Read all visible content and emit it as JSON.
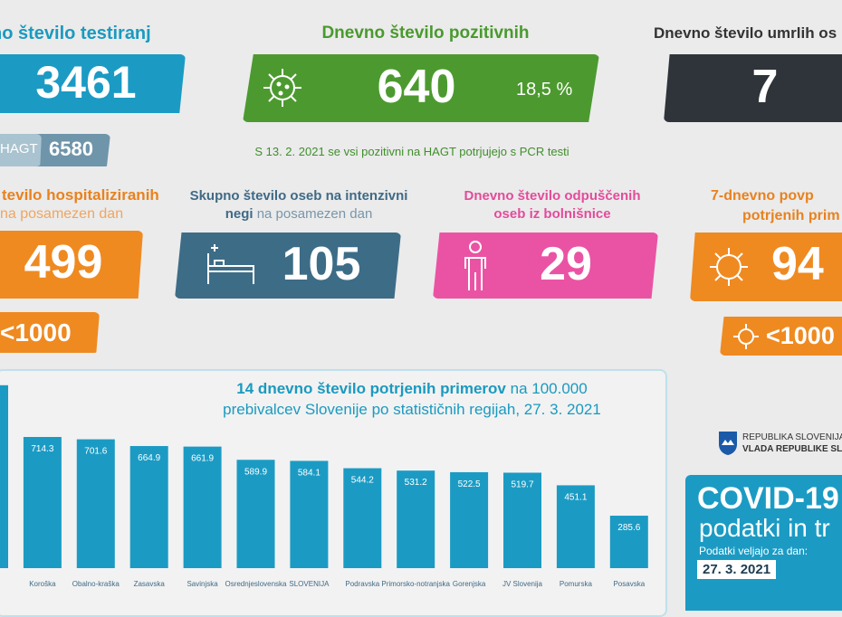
{
  "tests": {
    "title": "no število testiranj",
    "value": "3461",
    "hagt_label": "HAGT",
    "hagt_value": "6580"
  },
  "positives": {
    "title": "Dnevno število pozitivnih",
    "value": "640",
    "percent": "18,5 %"
  },
  "deaths": {
    "title": "Dnevno število umrlih os",
    "value": "7"
  },
  "note": "S 13. 2. 2021 se vsi pozitivni na HAGT potrjujejo s PCR testi",
  "hospitalized": {
    "title_bold": "tevilo hospitaliziranih",
    "title_rest": "na posamezen dan",
    "value": "499",
    "sub": "<1000"
  },
  "icu": {
    "title_bold_1": "Skupno število oseb na intenzivni",
    "title_bold_2": "negi",
    "title_rest": "na posamezen dan",
    "value": "105"
  },
  "discharged": {
    "title_1": "Dnevno število odpuščenih",
    "title_2": "oseb iz bolnišnice",
    "value": "29"
  },
  "avg7": {
    "title_1": "7-dnevno povp",
    "title_2": "potrjenih prim",
    "value": "94",
    "sub": "<1000"
  },
  "chart_data": {
    "type": "bar",
    "title_bold": "14 dnevno število potrjenih primerov",
    "title_rest_1": "na 100.000",
    "title_rest_2": "prebivalcev Slovenije po statističnih regijah, 27. 3. 2021",
    "categories": [
      null,
      "Koroška",
      "Obalno-kraška",
      "Zasavska",
      "Savinjska",
      "Osrednjeslovenska",
      "SLOVENIJA",
      "Podravska",
      "Primorsko-notranjska",
      "Gorenjska",
      "JV Slovenija",
      "Pomurska",
      "Posavska"
    ],
    "values": [
      996,
      714.3,
      701.6,
      664.9,
      661.9,
      589.9,
      584.1,
      544.2,
      531.2,
      522.5,
      519.7,
      451.1,
      285.6
    ],
    "color": "#1b9bc4",
    "ylim": [
      0,
      1000
    ]
  },
  "footer": {
    "gov_1": "REPUBLIKA SLOVENIJA",
    "gov_2": "VLADA REPUBLIKE SL",
    "covid": "COVID-19",
    "sub": "podatki in tr",
    "valid": "Podatki veljajo za dan:",
    "date": "27. 3. 2021"
  }
}
